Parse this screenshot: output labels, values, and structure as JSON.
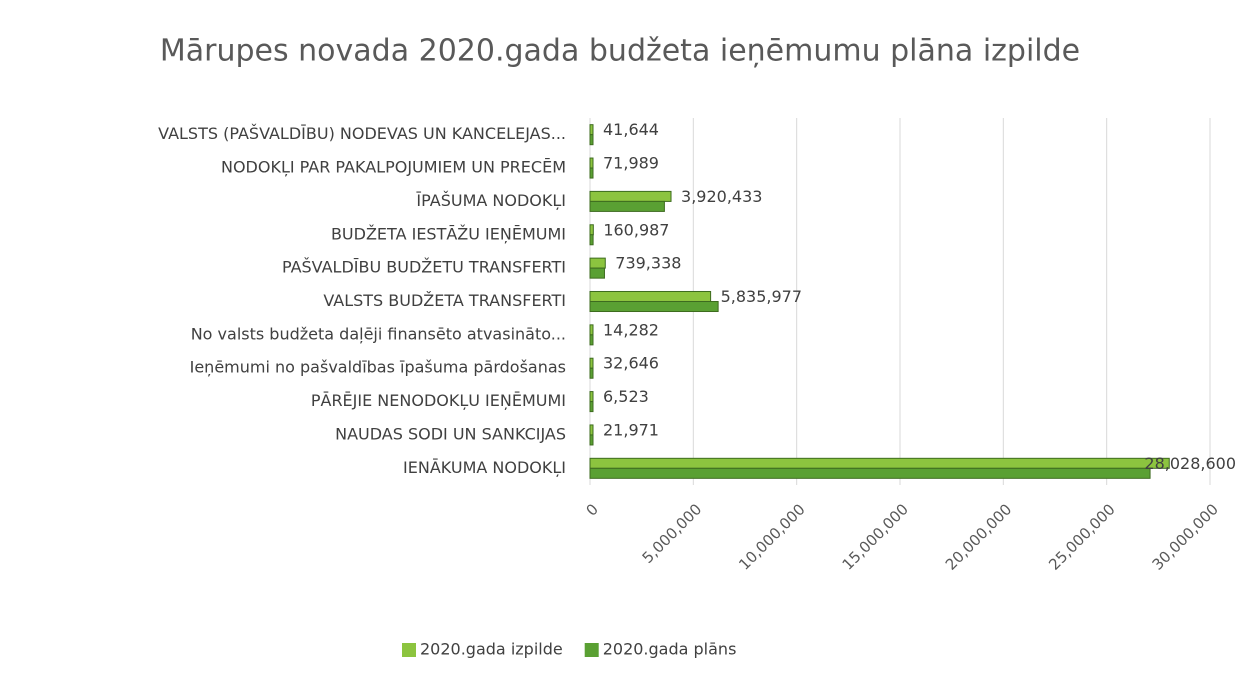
{
  "chart_data": {
    "type": "bar",
    "orientation": "horizontal",
    "title": "Mārupes novada 2020.gada budžeta ieņēmumu plāna izpilde",
    "categories": [
      "VALSTS (PAŠVALDĪBU) NODEVAS UN KANCELEJAS...",
      "NODOKĻI PAR PAKALPOJUMIEM UN PRECĒM",
      "ĪPAŠUMA NODOKĻI",
      "BUDŽETA IESTĀŽU IEŅĒMUMI",
      "PAŠVALDĪBU BUDŽETU TRANSFERTI",
      "VALSTS BUDŽETA TRANSFERTI",
      "No valsts budžeta daļēji finansēto atvasināto...",
      "Ieņēmumi no pašvaldības īpašuma pārdošanas",
      "PĀRĒJIE NENODOKĻU IEŅĒMUMI",
      "NAUDAS SODI UN SANKCIJAS",
      "IENĀKUMA NODOKĻI"
    ],
    "series": [
      {
        "name": "2020.gada izpilde",
        "color": "#8cc43f",
        "values": [
          41644,
          71989,
          3920433,
          160987,
          739338,
          5835977,
          14282,
          32646,
          6523,
          21971,
          28028600
        ],
        "value_labels": [
          "41,644",
          "71,989",
          "3,920,433",
          "160,987",
          "739,338",
          "5,835,977",
          "14,282",
          "32,646",
          "6,523",
          "21,971",
          "28,028,600"
        ]
      },
      {
        "name": "2020.gada plāns",
        "color": "#5aa033",
        "values": [
          40000,
          70000,
          3600000,
          150000,
          700000,
          6200000,
          15000,
          30000,
          7000,
          20000,
          27100000
        ]
      }
    ],
    "xlim": [
      0,
      30000000
    ],
    "xticks": [
      0,
      {
        "value": 5000000,
        "label": "5,000,000"
      },
      {
        "value": 10000000,
        "label": "10,000,000"
      },
      {
        "value": 15000000,
        "label": "15,000,000"
      },
      {
        "value": 20000000,
        "label": "20,000,000"
      },
      {
        "value": 25000000,
        "label": "25,000,000"
      },
      {
        "value": 30000000,
        "label": "30,000,000"
      }
    ],
    "grid": true,
    "legend": "bottom"
  }
}
